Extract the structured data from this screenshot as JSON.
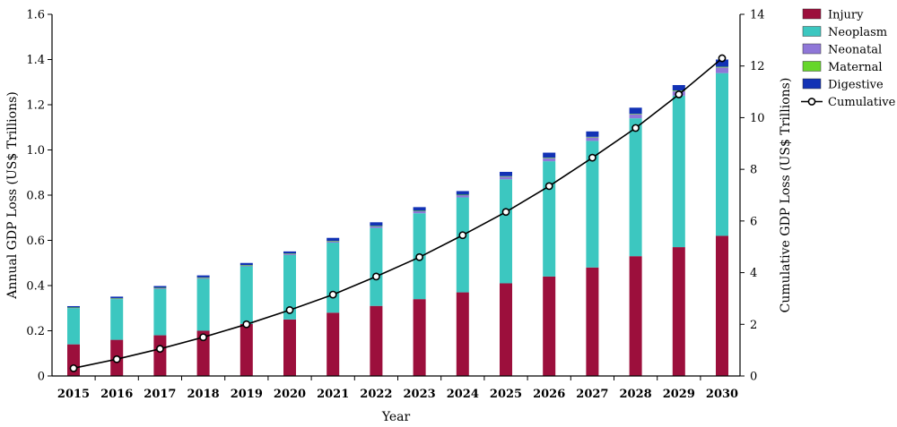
{
  "chart_data": {
    "type": "bar",
    "stacked": true,
    "categories": [
      "2015",
      "2016",
      "2017",
      "2018",
      "2019",
      "2020",
      "2021",
      "2022",
      "2023",
      "2024",
      "2025",
      "2026",
      "2027",
      "2028",
      "2029",
      "2030"
    ],
    "series": [
      {
        "name": "Injury",
        "color": "#9c0f3c",
        "values": [
          0.14,
          0.16,
          0.18,
          0.2,
          0.23,
          0.25,
          0.28,
          0.31,
          0.34,
          0.37,
          0.41,
          0.44,
          0.48,
          0.53,
          0.57,
          0.62
        ]
      },
      {
        "name": "Neoplasm",
        "color": "#3cc7c0",
        "values": [
          0.16,
          0.18,
          0.205,
          0.23,
          0.255,
          0.285,
          0.31,
          0.345,
          0.38,
          0.42,
          0.46,
          0.51,
          0.56,
          0.61,
          0.67,
          0.72
        ]
      },
      {
        "name": "Neonatal",
        "color": "#8f77d8",
        "values": [
          0.002,
          0.003,
          0.004,
          0.005,
          0.005,
          0.006,
          0.007,
          0.008,
          0.009,
          0.01,
          0.012,
          0.014,
          0.016,
          0.018,
          0.02,
          0.025
        ]
      },
      {
        "name": "Maternal",
        "color": "#66d62a",
        "values": [
          0.001,
          0.001,
          0.001,
          0.001,
          0.001,
          0.001,
          0.001,
          0.001,
          0.002,
          0.002,
          0.002,
          0.002,
          0.002,
          0.002,
          0.003,
          0.003
        ]
      },
      {
        "name": "Digestive",
        "color": "#1232b5",
        "values": [
          0.006,
          0.007,
          0.008,
          0.009,
          0.009,
          0.009,
          0.013,
          0.016,
          0.016,
          0.016,
          0.019,
          0.022,
          0.024,
          0.027,
          0.024,
          0.032
        ]
      }
    ],
    "cumulative": {
      "name": "Cumulative",
      "color": "#000000",
      "values": [
        0.3,
        0.65,
        1.05,
        1.5,
        2.0,
        2.55,
        3.15,
        3.85,
        4.6,
        5.45,
        6.35,
        7.35,
        8.45,
        9.6,
        10.9,
        12.3
      ]
    },
    "xlabel": "Year",
    "ylabel": "Annual GDP Loss (US$ Trillions)",
    "y2label": "Cumulative GDP Loss (US$ Trillions)",
    "ylim": [
      0,
      1.6
    ],
    "y2lim": [
      0,
      14
    ],
    "yticks": [
      "0",
      "0.2",
      "0.4",
      "0.6",
      "0.8",
      "1.0",
      "1.2",
      "1.4",
      "1.6"
    ],
    "y2ticks": [
      "0",
      "2",
      "4",
      "6",
      "8",
      "10",
      "12",
      "14"
    ],
    "legend_position": "top-right",
    "grid": false
  }
}
